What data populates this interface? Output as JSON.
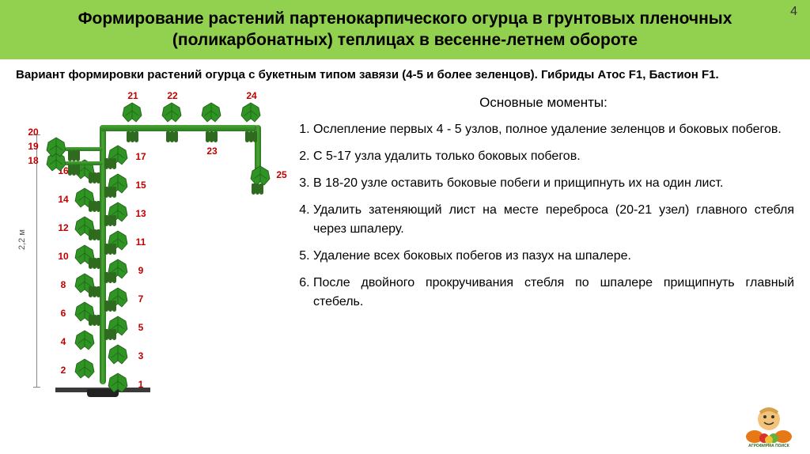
{
  "page_number": "4",
  "header_title": "Формирование растений партенокарпического огурца в грунтовых пленочных (поликарбонатных) теплицах в весенне-летнем обороте",
  "subtitle": "Вариант формировки растений огурца с букетным типом завязи (4-5 и более зеленцов). Гибриды Атос F1, Бастион F1.",
  "main_heading": "Основные моменты:",
  "points": [
    "Ослепление первых 4 - 5 узлов, полное удаление зеленцов и боковых побегов.",
    "С 5-17 узла удалить только боковых побегов.",
    "В 18-20 узле оставить боковые побеги и прищипнуть их на один лист.",
    "Удалить затеняющий лист на месте переброса (20-21 узел) главного стебля через шпалеру.",
    "Удаление всех боковых побегов из пазух на шпалере.",
    "После двойного прокручивания стебля по шпалере прищипнуть главный стебель."
  ],
  "diagram": {
    "height_label": "2,2 м",
    "node_numbers": [
      "1",
      "2",
      "3",
      "4",
      "5",
      "6",
      "7",
      "8",
      "9",
      "10",
      "11",
      "12",
      "13",
      "14",
      "15",
      "16",
      "17",
      "18",
      "19",
      "20",
      "21",
      "22",
      "23",
      "24",
      "25"
    ],
    "colors": {
      "leaf": "#2f9424",
      "stem": "#3c9428",
      "cucumber": "#2e6b1e",
      "label": "#c00000"
    }
  },
  "logo_text": "АГРОФИРМА ПОИСК"
}
